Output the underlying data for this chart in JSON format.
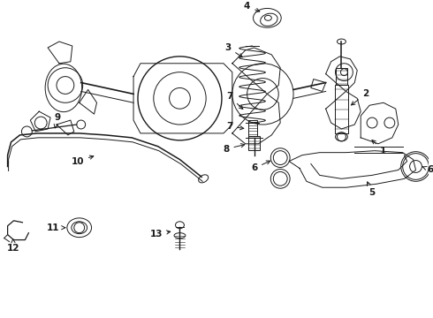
{
  "bg_color": "#ffffff",
  "line_color": "#1a1a1a",
  "fig_width": 4.9,
  "fig_height": 3.6,
  "dpi": 100,
  "xlim": [
    0,
    4.9
  ],
  "ylim": [
    0,
    3.6
  ]
}
